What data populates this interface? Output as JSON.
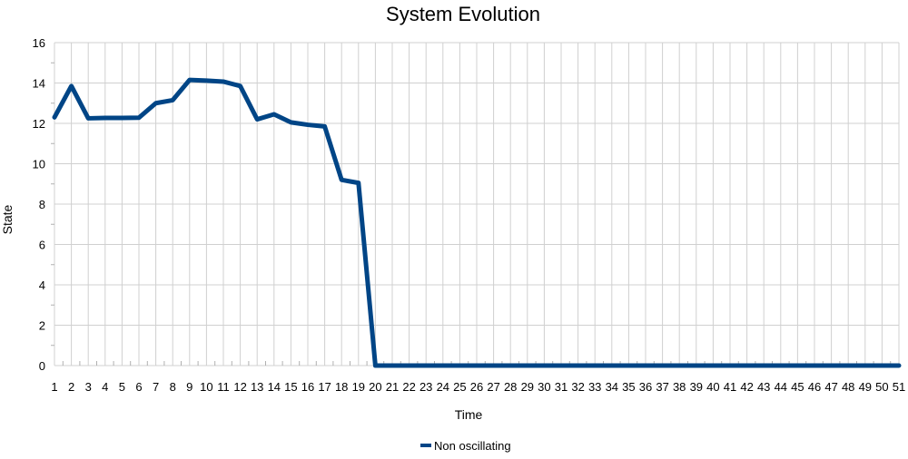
{
  "chart_data": {
    "type": "line",
    "title": "System Evolution",
    "xlabel": "Time",
    "ylabel": "State",
    "x": [
      1,
      2,
      3,
      4,
      5,
      6,
      7,
      8,
      9,
      10,
      11,
      12,
      13,
      14,
      15,
      16,
      17,
      18,
      19,
      20,
      21,
      22,
      23,
      24,
      25,
      26,
      27,
      28,
      29,
      30,
      31,
      32,
      33,
      34,
      35,
      36,
      37,
      38,
      39,
      40,
      41,
      42,
      43,
      44,
      45,
      46,
      47,
      48,
      49,
      50,
      51
    ],
    "series": [
      {
        "name": "Non oscillating",
        "color": "#004586",
        "values": [
          12.3,
          13.85,
          12.25,
          12.27,
          12.27,
          12.28,
          13.0,
          13.15,
          14.15,
          14.12,
          14.07,
          13.85,
          12.2,
          12.45,
          12.05,
          11.93,
          11.85,
          9.2,
          9.05,
          0,
          0,
          0,
          0,
          0,
          0,
          0,
          0,
          0,
          0,
          0,
          0,
          0,
          0,
          0,
          0,
          0,
          0,
          0,
          0,
          0,
          0,
          0,
          0,
          0,
          0,
          0,
          0,
          0,
          0,
          0,
          0
        ]
      }
    ],
    "ylim": [
      0,
      16
    ],
    "yticks": [
      0,
      2,
      4,
      6,
      8,
      10,
      12,
      14,
      16
    ],
    "grid": true,
    "legend_position": "bottom"
  }
}
